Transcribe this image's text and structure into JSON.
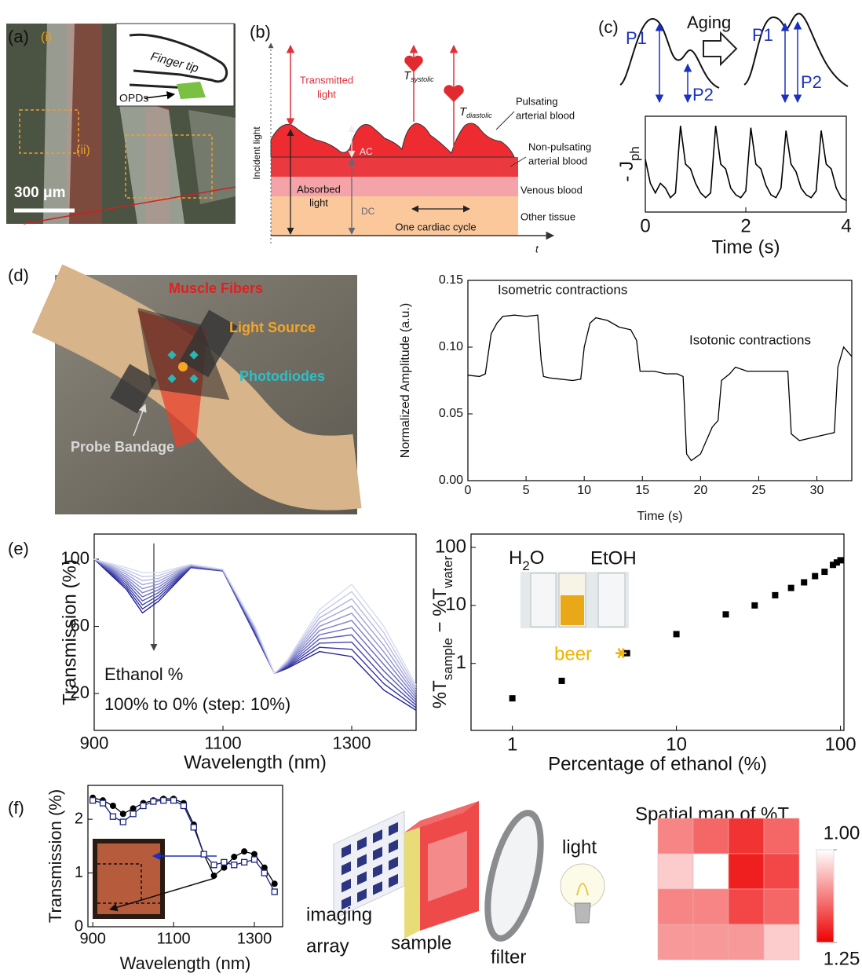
{
  "figure": {
    "panel_labels": [
      "(a)",
      "(b)",
      "(c)",
      "(d)",
      "(e)",
      "(f)"
    ],
    "a": {
      "marks": [
        "(i)",
        "(ii)"
      ],
      "inset": [
        "Finger tip",
        "OPDs"
      ],
      "scale_bar": "300 μm"
    },
    "b": {
      "incident": "Incident light",
      "transmitted": [
        "Transmitted",
        "light"
      ],
      "t_systolic": [
        "T",
        "systolic"
      ],
      "t_diastolic": [
        "T",
        "diastolic"
      ],
      "pulsating": [
        "Pulsating",
        "arterial blood"
      ],
      "non_pulsating": [
        "Non-pulsating",
        "arterial blood"
      ],
      "venous": "Venous blood",
      "tissue": "Other tissue",
      "ac": "AC",
      "dc": "DC",
      "absorbed": [
        "Absorbed",
        "light"
      ],
      "cycle": "One cardiac cycle",
      "t_axis": "t"
    },
    "c": {
      "aging": "Aging",
      "peaks": [
        "P1",
        "P2",
        "P1",
        "P2"
      ]
    },
    "d": {
      "labels": [
        "Muscle Fibers",
        "Light Source",
        "Photodiodes",
        "Probe Bandage"
      ]
    },
    "f": {
      "setup": [
        [
          "imaging",
          "array"
        ],
        "sample",
        "filter",
        "light"
      ]
    }
  },
  "chart_data": [
    {
      "type": "line",
      "ylabel": [
        "- J",
        "ph"
      ],
      "xlabel": "Time (s)",
      "color": "#000000",
      "x": [
        0,
        0.1,
        0.2,
        0.3,
        0.4,
        0.5,
        0.6,
        0.7,
        0.8,
        0.9,
        1,
        1.1,
        1.2,
        1.3,
        1.4,
        1.5,
        1.6,
        1.7,
        1.8,
        1.9,
        2,
        2.1,
        2.2,
        2.3,
        2.4,
        2.5,
        2.6,
        2.7,
        2.8,
        2.9,
        3,
        3.1,
        3.2,
        3.3,
        3.4,
        3.5,
        3.6,
        3.7,
        3.8,
        3.9,
        4
      ],
      "values": [
        0.55,
        0.3,
        0.2,
        0.3,
        0.25,
        0.15,
        0.2,
        0.9,
        0.5,
        0.45,
        0.3,
        0.2,
        0.15,
        0.2,
        0.9,
        0.5,
        0.45,
        0.25,
        0.18,
        0.15,
        0.22,
        0.88,
        0.5,
        0.45,
        0.28,
        0.18,
        0.15,
        0.25,
        0.85,
        0.5,
        0.42,
        0.25,
        0.18,
        0.15,
        0.22,
        0.85,
        0.5,
        0.45,
        0.25,
        0.15,
        0.12
      ],
      "xlim": [
        0,
        4
      ],
      "xticks": [
        0,
        2,
        4
      ],
      "ylim": [
        0,
        1
      ]
    },
    {
      "type": "line",
      "xlabel": "Time (s)",
      "ylabel": "Normalized Amplitude (a.u.)",
      "color": "#000000",
      "annotations": [
        "Isometric contractions",
        "Isotonic contractions"
      ],
      "x": [
        0,
        1,
        1.5,
        2,
        2.5,
        3,
        4,
        5,
        6,
        6.3,
        6.5,
        7,
        8,
        9,
        9.7,
        10,
        10.5,
        11,
        12,
        13,
        14,
        14.5,
        14.8,
        16,
        17,
        18,
        18.5,
        18.8,
        19.2,
        20,
        21,
        21.5,
        21.8,
        22.5,
        23,
        24,
        25,
        26,
        27.5,
        27.8,
        28.5,
        30,
        31,
        31.5,
        31.8,
        32.3,
        33
      ],
      "values": [
        0.079,
        0.078,
        0.08,
        0.11,
        0.118,
        0.123,
        0.124,
        0.123,
        0.124,
        0.09,
        0.078,
        0.077,
        0.076,
        0.075,
        0.076,
        0.1,
        0.118,
        0.122,
        0.12,
        0.115,
        0.113,
        0.105,
        0.082,
        0.082,
        0.08,
        0.08,
        0.078,
        0.02,
        0.015,
        0.02,
        0.04,
        0.045,
        0.075,
        0.08,
        0.085,
        0.082,
        0.082,
        0.082,
        0.082,
        0.035,
        0.03,
        0.033,
        0.035,
        0.036,
        0.085,
        0.1,
        0.093
      ],
      "xlim": [
        0,
        33
      ],
      "xticks": [
        0,
        5,
        10,
        15,
        20,
        25,
        30
      ],
      "ylim": [
        0,
        0.15
      ],
      "yticks": [
        {
          "value": 0,
          "label": "0.00"
        },
        0.05,
        {
          "value": 0.1,
          "label": "0.10"
        },
        0.15
      ]
    },
    {
      "type": "line",
      "xlabel": "Wavelength (nm)",
      "ylabel": "Transmission (%)",
      "annotations": [
        "Ethanol %",
        "100% to 0% (step: 10%)"
      ],
      "x": [
        900,
        950,
        975,
        1000,
        1050,
        1100,
        1150,
        1180,
        1200,
        1250,
        1300,
        1350,
        1400
      ],
      "series": [
        {
          "color": "#20209a",
          "values": [
            100,
            82,
            68,
            75,
            95,
            93,
            55,
            32,
            35,
            45,
            42,
            22,
            10
          ]
        },
        {
          "color": "#3233a3",
          "values": [
            100,
            83.3,
            70.4,
            76.7,
            95.2,
            93.1,
            55.5,
            32,
            35.5,
            47.5,
            46.3,
            25.8,
            11.5
          ]
        },
        {
          "color": "#4546ac",
          "values": [
            100,
            84.6,
            72.8,
            78.4,
            95.4,
            93.2,
            56,
            32,
            36,
            50,
            50.6,
            29.6,
            13
          ]
        },
        {
          "color": "#5758b4",
          "values": [
            100,
            85.9,
            75.2,
            80.1,
            95.6,
            93.3,
            56.5,
            32,
            36.5,
            52.5,
            54.9,
            33.4,
            14.5
          ]
        },
        {
          "color": "#6a6bbd",
          "values": [
            100,
            87.2,
            77.6,
            81.8,
            95.8,
            93.4,
            57,
            32,
            37,
            55,
            59.2,
            37.2,
            16
          ]
        },
        {
          "color": "#7c7ec6",
          "values": [
            100,
            88.5,
            80,
            83.5,
            96,
            93.5,
            57.5,
            32,
            37.5,
            57.5,
            63.5,
            41,
            17.5
          ]
        },
        {
          "color": "#8e91cf",
          "values": [
            100,
            89.8,
            82.4,
            85.2,
            96.2,
            93.6,
            58,
            32,
            38,
            60,
            67.8,
            44.8,
            19
          ]
        },
        {
          "color": "#a1a4d8",
          "values": [
            100,
            91.1,
            84.8,
            86.9,
            96.4,
            93.7,
            58.5,
            32,
            38.5,
            62.5,
            72.1,
            48.6,
            20.5
          ]
        },
        {
          "color": "#b3b6e0",
          "values": [
            100,
            92.4,
            87.2,
            88.6,
            96.6,
            93.8,
            59,
            32,
            39,
            65,
            76.4,
            52.4,
            22
          ]
        },
        {
          "color": "#c6c9e9",
          "values": [
            100,
            93.7,
            89.6,
            90.3,
            96.8,
            93.9,
            59.5,
            32,
            39.5,
            67.5,
            80.7,
            56.2,
            23.5
          ]
        },
        {
          "color": "#d8dcf2",
          "values": [
            100,
            95,
            92,
            92,
            97,
            94,
            60,
            32,
            40,
            70,
            85,
            60,
            25
          ]
        }
      ],
      "xlim": [
        900,
        1400
      ],
      "xticks": [
        900,
        1100,
        1300
      ],
      "ylim": [
        -2,
        115
      ],
      "yticks": [
        20,
        60,
        100
      ]
    },
    {
      "type": "scatter",
      "xscale": "log",
      "yscale": "log",
      "xlabel": "Percentage of ethanol (%)",
      "ylabel": [
        "%T",
        "sample",
        " − %T",
        "water"
      ],
      "color": "#000000",
      "x": [
        1,
        2,
        5,
        10,
        20,
        30,
        40,
        50,
        60,
        70,
        80,
        90,
        95,
        100
      ],
      "values": [
        0.25,
        0.5,
        1.5,
        3.2,
        7,
        10,
        15,
        20,
        25,
        32,
        38,
        50,
        55,
        60
      ],
      "xlim": [
        0.56,
        105
      ],
      "xticks": [
        1,
        10,
        100
      ],
      "ylim": [
        0.07,
        170
      ],
      "yticks": [
        1,
        10,
        100
      ],
      "inset_labels": {
        "water": [
          "H",
          "2",
          "O"
        ],
        "ethanol": "EtOH"
      },
      "highlight": {
        "label": "beer",
        "x": 4.6,
        "y": 1.5,
        "color": "#f0b400"
      }
    },
    {
      "type": "line",
      "xlabel": "Wavelength (nm)",
      "ylabel": "Transmission (%)",
      "x": [
        900,
        925,
        950,
        975,
        1000,
        1025,
        1050,
        1075,
        1100,
        1125,
        1150,
        1175,
        1200,
        1225,
        1250,
        1275,
        1300,
        1325,
        1350
      ],
      "series": [
        {
          "color": "#000000",
          "marker": "circle",
          "values": [
            2.4,
            2.35,
            2.25,
            2.1,
            2.2,
            2.3,
            2.35,
            2.38,
            2.38,
            2.3,
            1.9,
            1.35,
            0.95,
            1.1,
            1.3,
            1.4,
            1.35,
            1.1,
            0.8
          ]
        },
        {
          "color": "#1a237e",
          "marker": "square",
          "values": [
            2.35,
            2.3,
            2.05,
            1.95,
            2.1,
            2.25,
            2.33,
            2.35,
            2.35,
            2.25,
            1.85,
            1.35,
            1.15,
            1.2,
            1.15,
            1.2,
            1.25,
            1.0,
            0.65
          ]
        }
      ],
      "xlim": [
        888,
        1370
      ],
      "xticks": [
        900,
        1100,
        1300
      ],
      "ylim": [
        0,
        2.63
      ],
      "yticks": [
        0,
        1,
        2
      ]
    },
    {
      "type": "heatmap",
      "title": "Spatial map of %T",
      "values": [
        [
          1.12,
          1.15,
          1.2,
          1.15
        ],
        [
          1.05,
          1.0,
          1.22,
          1.18
        ],
        [
          1.12,
          1.12,
          1.18,
          1.15
        ],
        [
          1.1,
          1.1,
          1.1,
          1.05
        ]
      ],
      "colorbar": {
        "colors": [
          "#ffffff",
          "#ee0000"
        ],
        "ticks": [
          {
            "value": 1,
            "label": "1.00"
          },
          1.25
        ]
      }
    }
  ]
}
